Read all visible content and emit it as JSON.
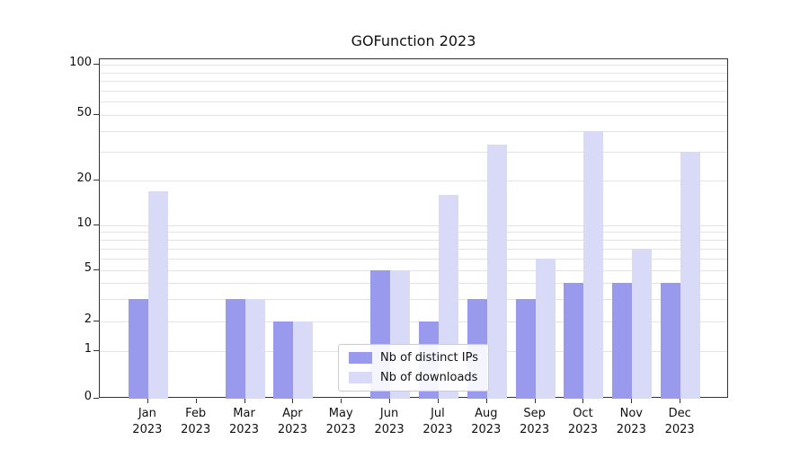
{
  "chart_data": {
    "type": "bar",
    "title": "GOFunction 2023",
    "categories": [
      "Jan 2023",
      "Feb 2023",
      "Mar 2023",
      "Apr 2023",
      "May 2023",
      "Jun 2023",
      "Jul 2023",
      "Aug 2023",
      "Sep 2023",
      "Oct 2023",
      "Nov 2023",
      "Dec 2023"
    ],
    "series": [
      {
        "name": "Nb of distinct IPs",
        "color": "#9999ee",
        "values": [
          3,
          0,
          3,
          2,
          0,
          5,
          2,
          3,
          3,
          4,
          4,
          4
        ]
      },
      {
        "name": "Nb of downloads",
        "color": "#d9d9f8",
        "values": [
          17,
          0,
          3,
          2,
          0,
          5,
          16,
          33,
          6,
          40,
          7,
          30
        ]
      }
    ],
    "yticks": [
      0,
      1,
      2,
      5,
      10,
      20,
      50,
      100
    ],
    "ylim": [
      0,
      100
    ],
    "yscale": "symlog",
    "xlabel": "",
    "ylabel": "",
    "grid": "horizontal minor log gridlines",
    "legend_position": "bottom-center inside plot"
  }
}
